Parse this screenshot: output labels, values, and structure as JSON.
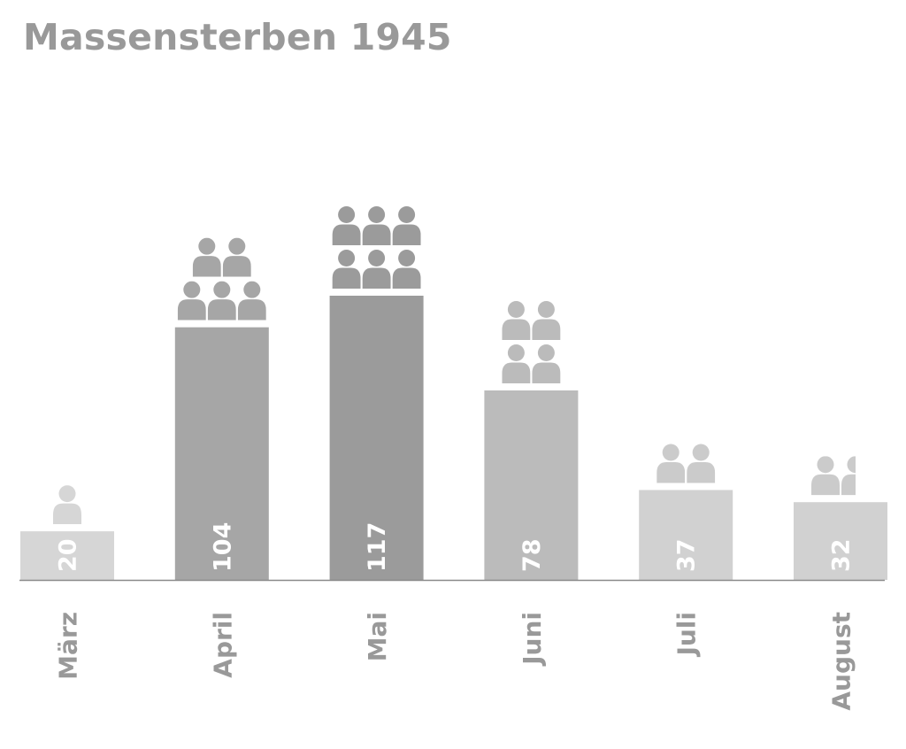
{
  "chart_data": {
    "type": "bar",
    "title": "Massensterben 1945",
    "xlabel": "",
    "ylabel": "",
    "categories": [
      "März",
      "April",
      "Mai",
      "Juni",
      "Juli",
      "August"
    ],
    "values": [
      20,
      104,
      117,
      78,
      37,
      32
    ],
    "pictogram_units": [
      1,
      5,
      6,
      4,
      2,
      1.5
    ],
    "bar_colors": [
      "#d6d6d6",
      "#a6a6a6",
      "#9b9b9b",
      "#bbbbbb",
      "#d1d1d1",
      "#d1d1d1"
    ],
    "icon_colors": [
      "#d6d6d6",
      "#a6a6a6",
      "#9b9b9b",
      "#bbbbbb",
      "#cbcbcb",
      "#cbcbcb"
    ],
    "value_label_color": "#ffffff",
    "category_label_color": "#999999",
    "baseline_color": "#8a8a8a",
    "icon": "person-icon",
    "grid": false,
    "legend": "none",
    "ylim": [
      0,
      117
    ]
  }
}
